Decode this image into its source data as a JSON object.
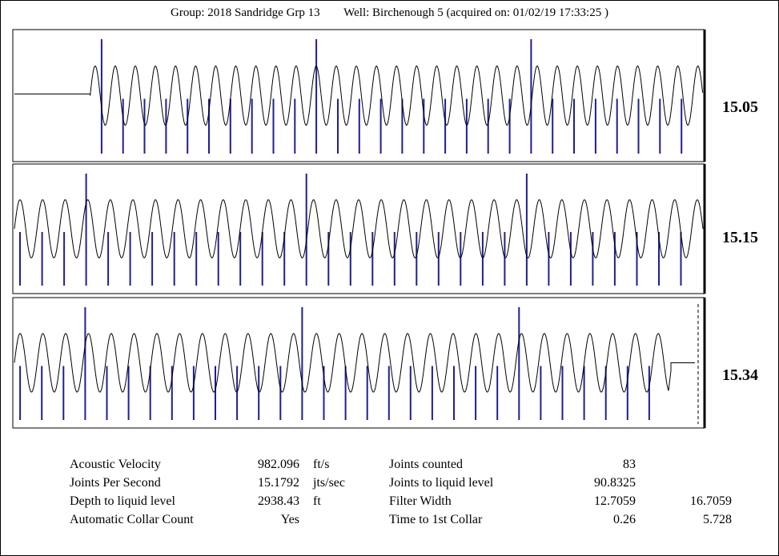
{
  "header": {
    "group": "Group: 2018 Sandridge Grp 13",
    "well": "Well: Birchenough 5 (acquired on: 01/02/19 17:33:25 )"
  },
  "colors": {
    "trace": "#000000",
    "markers": "#1f1f8f"
  },
  "chart_data": [
    {
      "type": "line",
      "joints_per_second_label": "15.05",
      "start_offset": 0.11,
      "cycles": 30.5,
      "amplitude": 0.9,
      "tall_markers": [
        0,
        10,
        20
      ],
      "marker_count": 28
    },
    {
      "type": "line",
      "joints_per_second_label": "15.15",
      "start_offset": 0.0,
      "cycles": 30.5,
      "amplitude": 0.9,
      "tall_markers": [
        3,
        13,
        23
      ],
      "marker_count": 31
    },
    {
      "type": "line",
      "joints_per_second_label": "15.34",
      "start_offset": 0.0,
      "cycles": 28.7,
      "amplitude": 0.9,
      "tall_markers": [
        3,
        13,
        23
      ],
      "marker_count": 30,
      "end_flat": true
    }
  ],
  "stats": {
    "left": [
      {
        "label": "Acoustic Velocity",
        "value": "982.096",
        "unit": "ft/s"
      },
      {
        "label": "Joints Per Second",
        "value": "15.1792",
        "unit": "jts/sec"
      },
      {
        "label": "Depth to liquid level",
        "value": "2938.43",
        "unit": "ft"
      },
      {
        "label": "Automatic Collar Count",
        "value": "Yes",
        "unit": ""
      }
    ],
    "right": [
      {
        "label": "Joints counted",
        "value": "83",
        "extra": ""
      },
      {
        "label": "Joints to liquid level",
        "value": "90.8325",
        "extra": ""
      },
      {
        "label": "Filter Width",
        "value": "12.7059",
        "extra": "16.7059"
      },
      {
        "label": "Time to 1st Collar",
        "value": "0.26",
        "extra": "5.728"
      }
    ]
  }
}
